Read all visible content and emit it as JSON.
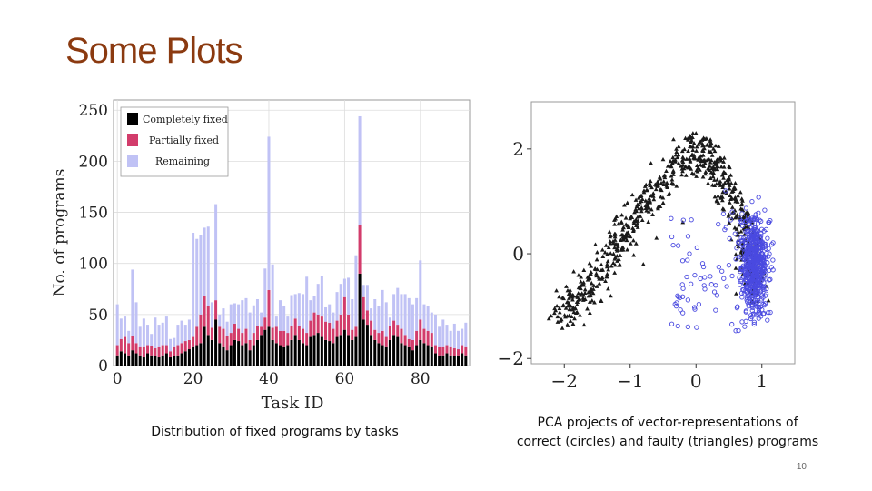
{
  "slide": {
    "title": "Some Plots",
    "page_number": "10",
    "caption_left": "Distribution of fixed programs by tasks",
    "caption_right_line1": "PCA projects of vector-representations of",
    "caption_right_line2": "correct (circles) and faulty (triangles) programs"
  },
  "colors": {
    "title": "#8B3A10",
    "completely_fixed": "#000000",
    "partially_fixed": "#D23C6B",
    "remaining": "#C0C2F5",
    "correct": "#4A4AE0",
    "faulty": "#1a1a1a"
  },
  "chart_data": [
    {
      "type": "bar",
      "stacked": true,
      "title": "",
      "xlabel": "Task ID",
      "ylabel": "No. of programs",
      "xlim": [
        -1,
        93
      ],
      "ylim": [
        0,
        260
      ],
      "xticks": [
        0,
        20,
        40,
        60,
        80
      ],
      "yticks": [
        0,
        50,
        100,
        150,
        200,
        250
      ],
      "legend_position": "top-left",
      "categories": [
        0,
        1,
        2,
        3,
        4,
        5,
        6,
        7,
        8,
        9,
        10,
        11,
        12,
        13,
        14,
        15,
        16,
        17,
        18,
        19,
        20,
        21,
        22,
        23,
        24,
        25,
        26,
        27,
        28,
        29,
        30,
        31,
        32,
        33,
        34,
        35,
        36,
        37,
        38,
        39,
        40,
        41,
        42,
        43,
        44,
        45,
        46,
        47,
        48,
        49,
        50,
        51,
        52,
        53,
        54,
        55,
        56,
        57,
        58,
        59,
        60,
        61,
        62,
        63,
        64,
        65,
        66,
        67,
        68,
        69,
        70,
        71,
        72,
        73,
        74,
        75,
        76,
        77,
        78,
        79,
        80,
        81,
        82,
        83,
        84,
        85,
        86,
        87,
        88,
        89,
        90,
        91,
        92
      ],
      "series": [
        {
          "name": "Completely fixed",
          "values": [
            10,
            14,
            12,
            10,
            15,
            12,
            10,
            8,
            12,
            10,
            9,
            8,
            10,
            12,
            8,
            9,
            10,
            12,
            14,
            16,
            18,
            20,
            22,
            38,
            30,
            25,
            45,
            22,
            18,
            15,
            20,
            25,
            24,
            20,
            22,
            15,
            20,
            25,
            30,
            35,
            38,
            25,
            22,
            20,
            18,
            20,
            25,
            30,
            25,
            22,
            20,
            28,
            30,
            32,
            28,
            25,
            24,
            22,
            28,
            30,
            35,
            30,
            25,
            28,
            90,
            45,
            40,
            30,
            25,
            22,
            20,
            18,
            25,
            30,
            28,
            22,
            20,
            18,
            15,
            20,
            25,
            22,
            20,
            18,
            12,
            10,
            10,
            12,
            10,
            9,
            10,
            12,
            10
          ]
        },
        {
          "name": "Partially fixed",
          "values": [
            10,
            12,
            16,
            12,
            14,
            10,
            8,
            10,
            8,
            9,
            8,
            10,
            10,
            8,
            6,
            9,
            10,
            10,
            10,
            9,
            10,
            18,
            28,
            30,
            28,
            12,
            19,
            16,
            18,
            14,
            12,
            16,
            12,
            12,
            14,
            10,
            12,
            14,
            8,
            12,
            36,
            12,
            16,
            14,
            16,
            12,
            14,
            16,
            14,
            14,
            12,
            16,
            22,
            18,
            20,
            18,
            18,
            14,
            16,
            20,
            32,
            20,
            10,
            10,
            48,
            22,
            14,
            14,
            10,
            10,
            14,
            10,
            14,
            14,
            12,
            14,
            10,
            8,
            10,
            14,
            20,
            14,
            14,
            14,
            8,
            8,
            8,
            8,
            8,
            8,
            6,
            8,
            8
          ]
        },
        {
          "name": "Remaining",
          "values": [
            40,
            20,
            20,
            12,
            65,
            40,
            20,
            28,
            20,
            12,
            30,
            22,
            22,
            28,
            12,
            9,
            20,
            22,
            16,
            20,
            102,
            86,
            78,
            67,
            78,
            25,
            94,
            12,
            20,
            14,
            28,
            20,
            24,
            32,
            30,
            27,
            27,
            26,
            14,
            48,
            150,
            62,
            10,
            30,
            24,
            16,
            30,
            24,
            32,
            34,
            55,
            20,
            16,
            30,
            40,
            14,
            18,
            16,
            28,
            30,
            18,
            36,
            30,
            70,
            106,
            12,
            25,
            12,
            30,
            26,
            40,
            34,
            8,
            26,
            36,
            34,
            40,
            40,
            35,
            32,
            58,
            24,
            24,
            20,
            30,
            20,
            27,
            20,
            16,
            24,
            18,
            16,
            24
          ]
        }
      ]
    },
    {
      "type": "scatter",
      "title": "",
      "xlabel": "",
      "ylabel": "",
      "xlim": [
        -2.5,
        1.5
      ],
      "ylim": [
        -2.1,
        2.9
      ],
      "xticks": [
        -2,
        -1,
        0,
        1
      ],
      "yticks": [
        -2,
        0,
        2
      ],
      "series": [
        {
          "name": "faulty (triangles)",
          "marker": "triangle",
          "sample_points": [
            [
              -2.1,
              -1.3
            ],
            [
              -1.9,
              -1.0
            ],
            [
              -1.7,
              -0.6
            ],
            [
              -1.5,
              -0.3
            ],
            [
              -1.3,
              0.2
            ],
            [
              -1.1,
              0.5
            ],
            [
              -0.9,
              0.9
            ],
            [
              -0.7,
              1.3
            ],
            [
              -0.5,
              1.8
            ],
            [
              -0.3,
              2.0
            ],
            [
              0.0,
              2.3
            ],
            [
              0.2,
              1.8
            ],
            [
              0.4,
              1.5
            ],
            [
              0.6,
              1.0
            ],
            [
              0.8,
              0.2
            ],
            [
              0.9,
              -0.4
            ],
            [
              0.85,
              -0.9
            ],
            [
              -0.8,
              -0.2
            ],
            [
              -0.6,
              0.3
            ],
            [
              -0.2,
              0.6
            ]
          ],
          "cloud_count": 700,
          "cloud_path": [
            [
              -2.1,
              -1.2
            ],
            [
              -1.6,
              -0.6
            ],
            [
              -1.1,
              0.4
            ],
            [
              -0.6,
              1.3
            ],
            [
              0.0,
              2.0
            ],
            [
              0.4,
              1.5
            ],
            [
              0.75,
              0.4
            ],
            [
              0.9,
              -0.8
            ]
          ]
        },
        {
          "name": "correct (circles)",
          "marker": "circle",
          "sample_points": [
            [
              0.9,
              0.5
            ],
            [
              1.0,
              0.0
            ],
            [
              0.95,
              -0.5
            ],
            [
              0.8,
              -1.0
            ],
            [
              0.7,
              -1.3
            ],
            [
              1.1,
              0.6
            ],
            [
              0.55,
              0.8
            ],
            [
              0.45,
              1.2
            ],
            [
              -0.3,
              -1.0
            ],
            [
              -0.1,
              0.0
            ]
          ],
          "cloud_count": 620,
          "cloud_center": [
            0.9,
            -0.2
          ],
          "cloud_spread": [
            0.18,
            0.75
          ]
        }
      ]
    }
  ]
}
